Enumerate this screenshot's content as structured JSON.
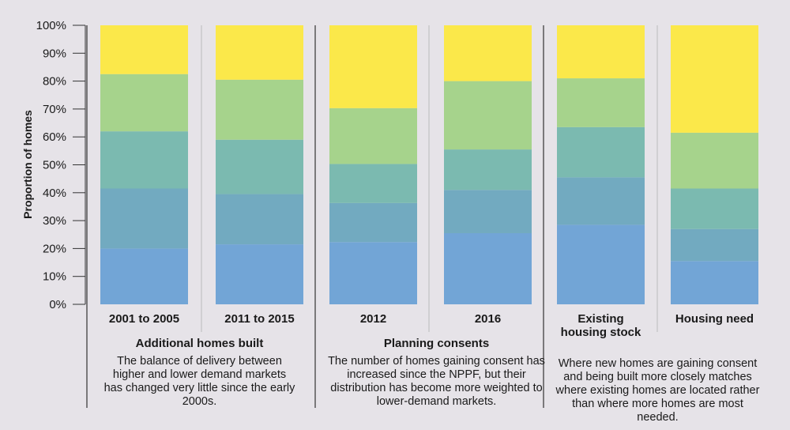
{
  "chart_data": {
    "type": "bar",
    "stacked": true,
    "ylabel": "Proportion of homes",
    "ylim": [
      0,
      100
    ],
    "y_ticks": [
      "0%",
      "10%",
      "20%",
      "30%",
      "40%",
      "50%",
      "60%",
      "70%",
      "80%",
      "90%",
      "100%"
    ],
    "categories": [
      [
        "2001 to 2005"
      ],
      [
        "2011 to 2015"
      ],
      [
        "2012"
      ],
      [
        "2016"
      ],
      [
        "Existing",
        "housing stock"
      ],
      [
        "Housing need"
      ]
    ],
    "series": [
      {
        "color": "#72a5d6",
        "values": [
          20,
          21.5,
          22.3,
          25.5,
          28.5,
          15.5
        ]
      },
      {
        "color": "#72aac0",
        "values": [
          21.5,
          18,
          14,
          15.5,
          17,
          11.5
        ]
      },
      {
        "color": "#7bbab0",
        "values": [
          20.5,
          19.5,
          14,
          14.5,
          18,
          14.5
        ]
      },
      {
        "color": "#a6d38c",
        "values": [
          20.5,
          21.5,
          20,
          24.5,
          17.5,
          20
        ]
      },
      {
        "color": "#fbe84a",
        "values": [
          17.5,
          19.5,
          29.7,
          20,
          19,
          38.5
        ]
      }
    ],
    "grid": false
  },
  "groups": [
    {
      "title": "Additional homes built",
      "description": "The balance of delivery between higher and lower demand markets has changed very little since the early 2000s."
    },
    {
      "title": "Planning consents",
      "description": "The number of homes gaining consent has increased since the NPPF, but their distribution has become more weighted to lower-demand markets."
    },
    {
      "title": "",
      "description": "Where new homes are gaining consent and being built more closely matches where existing homes are located rather than where more homes are most needed."
    }
  ]
}
